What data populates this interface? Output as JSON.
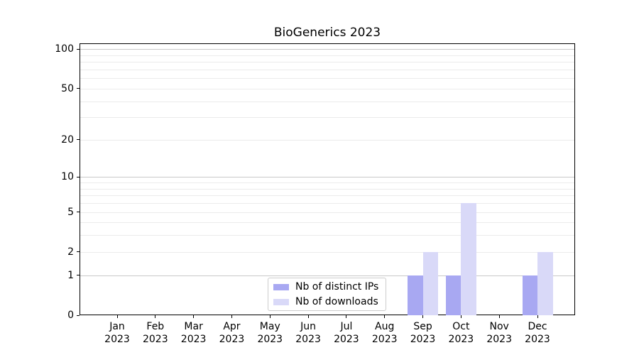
{
  "title": "BioGenerics 2023",
  "legend": {
    "items": [
      {
        "key": "ips",
        "label": "Nb of distinct IPs",
        "color": "#a8a8f2"
      },
      {
        "key": "downloads",
        "label": "Nb of downloads",
        "color": "#d9d9f8"
      }
    ],
    "position": "lower center"
  },
  "chart_data": {
    "type": "bar",
    "title": "BioGenerics 2023",
    "categories": [
      "Jan 2023",
      "Feb 2023",
      "Mar 2023",
      "Apr 2023",
      "May 2023",
      "Jun 2023",
      "Jul 2023",
      "Aug 2023",
      "Sep 2023",
      "Oct 2023",
      "Nov 2023",
      "Dec 2023"
    ],
    "series": [
      {
        "key": "ips",
        "name": "Nb of distinct IPs",
        "color": "#a8a8f2",
        "values": [
          0,
          0,
          0,
          0,
          0,
          0,
          0,
          0,
          1,
          1,
          0,
          1
        ]
      },
      {
        "key": "downloads",
        "name": "Nb of downloads",
        "color": "#d9d9f8",
        "values": [
          0,
          0,
          0,
          0,
          0,
          0,
          0,
          0,
          2,
          6,
          0,
          2
        ]
      }
    ],
    "xlabel": "",
    "ylabel": "",
    "yscale": "log1p",
    "ylim": [
      0,
      111
    ],
    "yticks": [
      0,
      1,
      2,
      5,
      10,
      20,
      50,
      100
    ],
    "major_gridlines": [
      1,
      10,
      100
    ],
    "minor_gridlines": [
      2,
      3,
      4,
      5,
      6,
      7,
      8,
      9,
      20,
      30,
      40,
      50,
      60,
      70,
      80,
      90
    ],
    "grid": true,
    "legend_position": "lower center"
  },
  "colors": {
    "background": "#ffffff",
    "spine": "#000000",
    "grid_major": "#c9c9c9",
    "grid_minor": "#ebebeb",
    "text": "#000000",
    "legend_border": "#cccccc"
  }
}
